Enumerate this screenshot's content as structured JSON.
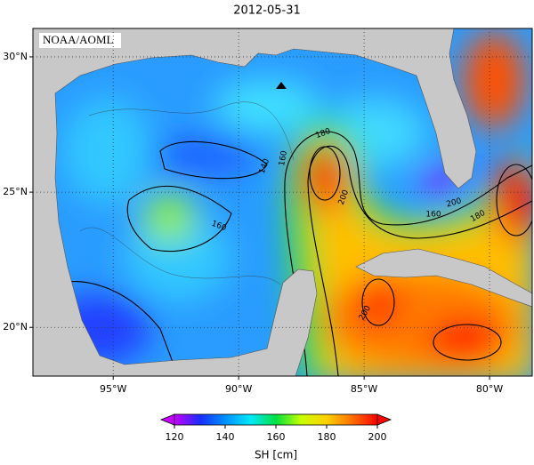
{
  "map": {
    "title": "2012-05-31",
    "credit": "NOAA/AOML",
    "lonlim": [
      -98.2,
      -78.3
    ],
    "latlim": [
      18.2,
      31.05
    ],
    "lon_ticks": [
      {
        "value": -95,
        "label": "95°W"
      },
      {
        "value": -90,
        "label": "90°W"
      },
      {
        "value": -85,
        "label": "85°W"
      },
      {
        "value": -80,
        "label": "80°W"
      }
    ],
    "lat_ticks": [
      {
        "value": 30,
        "label": "30°N"
      },
      {
        "value": 25,
        "label": "25°N"
      },
      {
        "value": 20,
        "label": "20°N"
      }
    ],
    "grid": true,
    "contour_labels": [
      180,
      160,
      140,
      200,
      160,
      160,
      200,
      180,
      200
    ],
    "colorbar": {
      "label": "SH [cm]",
      "range": [
        120,
        200
      ],
      "ticks": [
        120,
        140,
        160,
        180,
        200
      ],
      "colormap": [
        "#c800ff",
        "#1a2cff",
        "#0090ff",
        "#00e8ff",
        "#00e040",
        "#c8ff00",
        "#ffd000",
        "#ff7000",
        "#ff0000"
      ]
    }
  }
}
